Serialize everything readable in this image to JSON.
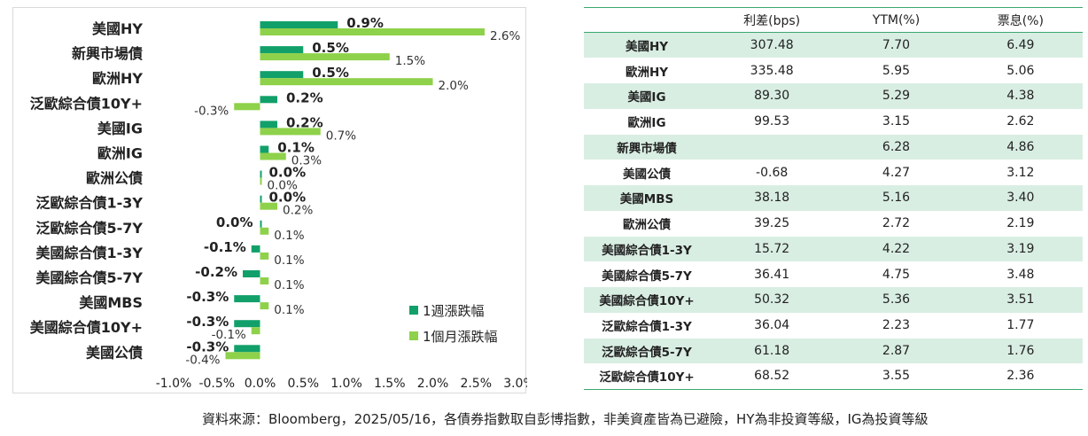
{
  "chart_data": {
    "type": "bar",
    "orientation": "horizontal",
    "categories": [
      "美國HY",
      "新興市場債",
      "歐洲HY",
      "泛歐綜合債10Y+",
      "美國IG",
      "歐洲IG",
      "歐洲公債",
      "泛歐綜合債1-3Y",
      "泛歐綜合債5-7Y",
      "美國綜合債1-3Y",
      "美國綜合債5-7Y",
      "美國MBS",
      "美國綜合債10Y+",
      "美國公債"
    ],
    "series": [
      {
        "name": "1週漲跌幅",
        "color": "#12a06a",
        "values": [
          0.9,
          0.5,
          0.5,
          0.2,
          0.2,
          0.1,
          0.0,
          0.0,
          0.0,
          -0.1,
          -0.2,
          -0.3,
          -0.3,
          -0.3
        ],
        "labels": [
          "0.9%",
          "0.5%",
          "0.5%",
          "0.2%",
          "0.2%",
          "0.1%",
          "0.0%",
          "0.0%",
          "0.0%",
          "-0.1%",
          "-0.2%",
          "-0.3%",
          "-0.3%",
          "-0.3%"
        ]
      },
      {
        "name": "1個月漲跌幅",
        "color": "#8ed14a",
        "values": [
          2.6,
          1.5,
          2.0,
          -0.3,
          0.7,
          0.3,
          0.0,
          0.2,
          0.1,
          0.1,
          0.1,
          0.1,
          -0.1,
          -0.4
        ],
        "labels": [
          "2.6%",
          "1.5%",
          "2.0%",
          "-0.3%",
          "0.7%",
          "0.3%",
          "0.0%",
          "0.2%",
          "0.1%",
          "0.1%",
          "0.1%",
          "0.1%",
          "-0.1%",
          "-0.4%"
        ]
      }
    ],
    "x_ticks": [
      "-1.0%",
      "-0.5%",
      "0.0%",
      "0.5%",
      "1.0%",
      "1.5%",
      "2.0%",
      "2.5%",
      "3.0%"
    ],
    "xlim": [
      -1.0,
      3.0
    ],
    "grid": false,
    "legend_position": "bottom-right"
  },
  "table": {
    "headers": [
      "",
      "利差(bps)",
      "YTM(%)",
      "票息(%)"
    ],
    "rows": [
      {
        "name": "美國HY",
        "spread": "307.48",
        "ytm": "7.70",
        "coupon": "6.49"
      },
      {
        "name": "歐洲HY",
        "spread": "335.48",
        "ytm": "5.95",
        "coupon": "5.06"
      },
      {
        "name": "美國IG",
        "spread": "89.30",
        "ytm": "5.29",
        "coupon": "4.38"
      },
      {
        "name": "歐洲IG",
        "spread": "99.53",
        "ytm": "3.15",
        "coupon": "2.62"
      },
      {
        "name": "新興市場債",
        "spread": "",
        "ytm": "6.28",
        "coupon": "4.86"
      },
      {
        "name": "美國公債",
        "spread": "-0.68",
        "ytm": "4.27",
        "coupon": "3.12"
      },
      {
        "name": "美國MBS",
        "spread": "38.18",
        "ytm": "5.16",
        "coupon": "3.40"
      },
      {
        "name": "歐洲公債",
        "spread": "39.25",
        "ytm": "2.72",
        "coupon": "2.19"
      },
      {
        "name": "美國綜合債1-3Y",
        "spread": "15.72",
        "ytm": "4.22",
        "coupon": "3.19"
      },
      {
        "name": "美國綜合債5-7Y",
        "spread": "36.41",
        "ytm": "4.75",
        "coupon": "3.48"
      },
      {
        "name": "美國綜合債10Y+",
        "spread": "50.32",
        "ytm": "5.36",
        "coupon": "3.51"
      },
      {
        "name": "泛歐綜合債1-3Y",
        "spread": "36.04",
        "ytm": "2.23",
        "coupon": "1.77"
      },
      {
        "name": "泛歐綜合債5-7Y",
        "spread": "61.18",
        "ytm": "2.87",
        "coupon": "1.76"
      },
      {
        "name": "泛歐綜合債10Y+",
        "spread": "68.52",
        "ytm": "3.55",
        "coupon": "2.36"
      }
    ]
  },
  "source_note": "資料來源：Bloomberg，2025/05/16，各債券指數取自彭博指數，非美資產皆為已避險，HY為非投資等級，IG為投資等級"
}
